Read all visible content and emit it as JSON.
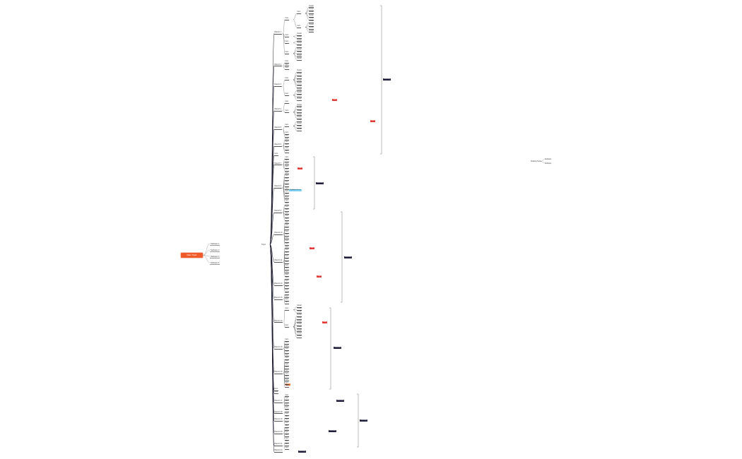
{
  "central_topic": "Main Topic",
  "subjects": [
    "Subtopic 1",
    "Subtopic 2",
    "Subtopic 3",
    "Subtopic 4"
  ],
  "second_root": "Topic",
  "floating": {
    "title": "Floating Topic",
    "children": [
      "Subtopic",
      "Subtopic"
    ]
  },
  "tags": {
    "summary_1": "Summary",
    "summary_2": "Summary",
    "summary_3": "Summary",
    "summary_4": "Summary",
    "summary_5": "Summary",
    "summary_6": "Summary",
    "summary_7": "Summary",
    "summary_8": "Summary",
    "label_1": "Label",
    "label_2": "Label",
    "label_3": "Label",
    "label_4": "Label",
    "label_5": "Label",
    "label_6": "Label",
    "label_7": "Label",
    "highlight": "Highlighted item"
  },
  "colors": {
    "central": "#ef5a2b",
    "dark_tag": "#1e1e3c",
    "red_tag": "#e53935",
    "orange_tag": "#f26b21",
    "blue_tag": "#7fd3f5",
    "branch": "#1a1a2e"
  },
  "tree": [
    {
      "label": "Branch 1",
      "children": [
        {
          "label": "Item",
          "children": [
            {
              "label": "Item",
              "children": [
                {
                  "label": "Detail"
                },
                {
                  "label": "Detail"
                },
                {
                  "label": "Detail"
                },
                {
                  "label": "Detail"
                },
                {
                  "label": "Detail"
                }
              ]
            },
            {
              "label": "Item",
              "children": [
                {
                  "label": "Detail"
                },
                {
                  "label": "Detail"
                },
                {
                  "label": "Detail"
                },
                {
                  "label": "Detail"
                }
              ]
            }
          ]
        },
        {
          "label": "Item",
          "children": [
            {
              "label": "Detail"
            },
            {
              "label": "Detail"
            }
          ]
        },
        {
          "label": "Item",
          "children": [
            {
              "label": "Detail"
            },
            {
              "label": "Detail"
            }
          ]
        },
        {
          "label": "Item",
          "children": [
            {
              "label": "Detail"
            },
            {
              "label": "Detail"
            },
            {
              "label": "Detail"
            },
            {
              "label": "Detail"
            },
            {
              "label": "Detail"
            }
          ]
        }
      ]
    },
    {
      "label": "Branch 2",
      "children": [
        {
          "label": "Item"
        },
        {
          "label": "Item"
        },
        {
          "label": "Item"
        }
      ]
    },
    {
      "label": "Branch 3",
      "children": [
        {
          "label": "Item",
          "children": [
            {
              "label": "Detail"
            },
            {
              "label": "Detail"
            },
            {
              "label": "Detail"
            },
            {
              "label": "Detail"
            },
            {
              "label": "Detail"
            },
            {
              "label": "Detail"
            }
          ]
        },
        {
          "label": "Item",
          "children": [
            {
              "label": "Detail"
            },
            {
              "label": "Detail"
            },
            {
              "label": "Detail"
            },
            {
              "label": "Detail"
            }
          ]
        }
      ]
    },
    {
      "label": "Branch 4",
      "children": [
        {
          "label": "Item"
        },
        {
          "label": "Item",
          "children": [
            {
              "label": "Detail"
            },
            {
              "label": "Detail"
            },
            {
              "label": "Detail"
            },
            {
              "label": "Detail"
            },
            {
              "label": "Detail"
            }
          ]
        }
      ]
    },
    {
      "label": "Branch 5",
      "children": [
        {
          "label": "Item",
          "children": [
            {
              "label": "Detail"
            },
            {
              "label": "Detail"
            },
            {
              "label": "Detail"
            },
            {
              "label": "Detail"
            }
          ]
        },
        {
          "label": "Item"
        },
        {
          "label": "Item"
        }
      ]
    },
    {
      "label": "Branch 6",
      "children": [
        {
          "label": "Item"
        },
        {
          "label": "Item"
        },
        {
          "label": "Item"
        },
        {
          "label": "Item"
        },
        {
          "label": "Item"
        }
      ]
    },
    {
      "label": "Item"
    },
    {
      "label": "Branch 7",
      "children": [
        {
          "label": "Item"
        },
        {
          "label": "Item"
        },
        {
          "label": "Item"
        },
        {
          "label": "Item"
        },
        {
          "label": "Item"
        }
      ]
    },
    {
      "label": "Branch 8",
      "children": [
        {
          "label": "Item"
        },
        {
          "label": "Item"
        },
        {
          "label": "Item"
        },
        {
          "label": "Item"
        },
        {
          "label": "Item"
        },
        {
          "label": "Item"
        },
        {
          "label": "Item"
        },
        {
          "label": "Item"
        },
        {
          "label": "Item"
        },
        {
          "label": "Item"
        }
      ]
    },
    {
      "label": "Branch 9",
      "children": [
        {
          "label": "Item"
        },
        {
          "label": "Item"
        },
        {
          "label": "Item"
        },
        {
          "label": "Item"
        },
        {
          "label": "Item"
        },
        {
          "label": "Item"
        }
      ]
    },
    {
      "label": "Branch 10",
      "children": [
        {
          "label": "Item"
        },
        {
          "label": "Item"
        },
        {
          "label": "Item"
        },
        {
          "label": "Item"
        },
        {
          "label": "Item"
        },
        {
          "label": "Item"
        },
        {
          "label": "Item"
        },
        {
          "label": "Item"
        }
      ]
    },
    {
      "label": "Branch 11",
      "children": [
        {
          "label": "Item"
        },
        {
          "label": "Item"
        },
        {
          "label": "Item"
        },
        {
          "label": "Item"
        },
        {
          "label": "Item"
        },
        {
          "label": "Item"
        },
        {
          "label": "Item"
        },
        {
          "label": "Item"
        },
        {
          "label": "Item"
        },
        {
          "label": "Item"
        }
      ]
    },
    {
      "label": "Branch 12",
      "children": [
        {
          "label": "Item"
        },
        {
          "label": "Item"
        },
        {
          "label": "Item"
        },
        {
          "label": "Item"
        },
        {
          "label": "Item"
        }
      ]
    },
    {
      "label": "Branch 13",
      "children": [
        {
          "label": "Item"
        },
        {
          "label": "Item"
        },
        {
          "label": "Item"
        },
        {
          "label": "Item"
        }
      ]
    },
    {
      "label": "Branch 14",
      "children": [
        {
          "label": "Item",
          "children": [
            {
              "label": "Detail"
            },
            {
              "label": "Detail"
            },
            {
              "label": "Detail"
            }
          ]
        },
        {
          "label": "Item",
          "children": [
            {
              "label": "Detail"
            },
            {
              "label": "Detail"
            },
            {
              "label": "Detail"
            },
            {
              "label": "Detail"
            },
            {
              "label": "Detail"
            },
            {
              "label": "Detail"
            },
            {
              "label": "Detail"
            },
            {
              "label": "Detail"
            }
          ]
        }
      ]
    },
    {
      "label": "Branch 15",
      "children": [
        {
          "label": "Item"
        },
        {
          "label": "Item"
        },
        {
          "label": "Item"
        },
        {
          "label": "Item"
        },
        {
          "label": "Item"
        },
        {
          "label": "Item"
        }
      ]
    },
    {
      "label": "Branch 16",
      "children": [
        {
          "label": "Item"
        },
        {
          "label": "Item"
        },
        {
          "label": "Item"
        },
        {
          "label": "Item"
        },
        {
          "label": "Item"
        },
        {
          "label": "Item"
        },
        {
          "label": "Item"
        },
        {
          "label": "Item"
        },
        {
          "label": "Item"
        },
        {
          "label": "Item"
        }
      ]
    },
    {
      "label": "Item"
    },
    {
      "label": "Item"
    },
    {
      "label": "Branch 17",
      "children": [
        {
          "label": "Item"
        },
        {
          "label": "Item"
        },
        {
          "label": "Item"
        },
        {
          "label": "Item"
        },
        {
          "label": "Item"
        }
      ]
    },
    {
      "label": "Branch 18",
      "children": [
        {
          "label": "Item"
        },
        {
          "label": "Item"
        }
      ]
    },
    {
      "label": "Branch 19",
      "children": [
        {
          "label": "Item"
        },
        {
          "label": "Item"
        },
        {
          "label": "Item"
        }
      ]
    },
    {
      "label": "Branch 20",
      "children": [
        {
          "label": "Item"
        },
        {
          "label": "Item"
        },
        {
          "label": "Item"
        },
        {
          "label": "Item"
        },
        {
          "label": "Item"
        }
      ]
    },
    {
      "label": "Branch 21",
      "children": [
        {
          "label": "Item"
        },
        {
          "label": "Item"
        },
        {
          "label": "Item"
        }
      ]
    },
    {
      "label": "Branch 22"
    }
  ]
}
